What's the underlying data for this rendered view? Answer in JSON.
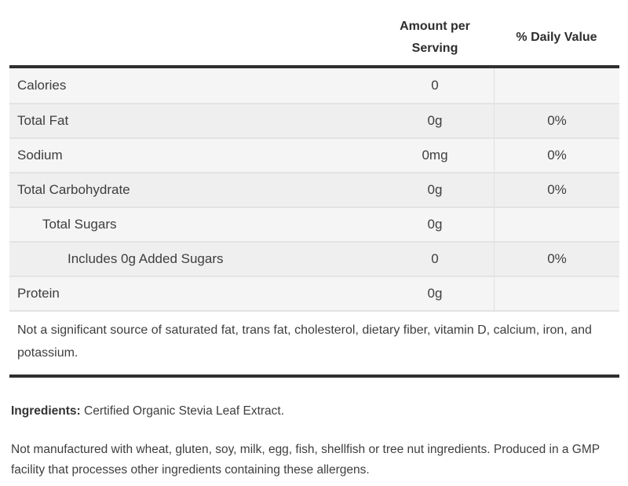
{
  "table": {
    "headers": {
      "amount": "Amount per Serving",
      "daily_value": "% Daily Value"
    },
    "rows": [
      {
        "label": "Calories",
        "amount": "0",
        "daily_value": "",
        "indent": 0
      },
      {
        "label": "Total Fat",
        "amount": "0g",
        "daily_value": "0%",
        "indent": 0
      },
      {
        "label": "Sodium",
        "amount": "0mg",
        "daily_value": "0%",
        "indent": 0
      },
      {
        "label": "Total Carbohydrate",
        "amount": "0g",
        "daily_value": "0%",
        "indent": 0
      },
      {
        "label": "Total Sugars",
        "amount": "0g",
        "daily_value": "",
        "indent": 1
      },
      {
        "label": "Includes 0g Added Sugars",
        "amount": "0",
        "daily_value": "0%",
        "indent": 2
      },
      {
        "label": "Protein",
        "amount": "0g",
        "daily_value": "",
        "indent": 0
      }
    ],
    "footnote": "Not a significant source of saturated fat, trans fat, cholesterol, dietary fiber, vitamin D, calcium, iron, and potassium."
  },
  "ingredients": {
    "label": "Ingredients:",
    "text": "Certified Organic Stevia Leaf Extract."
  },
  "allergen_statement": "Not manufactured with wheat, gluten, soy, milk, egg, fish, shellfish or tree nut ingredients. Produced in a GMP facility that processes other ingredients containing these allergens.",
  "colors": {
    "thick_rule": "#2f2f2f",
    "row_stripe_light": "#f4f5f4",
    "row_stripe_dark": "#eeefee",
    "row_separator": "#e2e3e2",
    "column_divider": "#dfe0df",
    "text": "#3e3e3e"
  }
}
